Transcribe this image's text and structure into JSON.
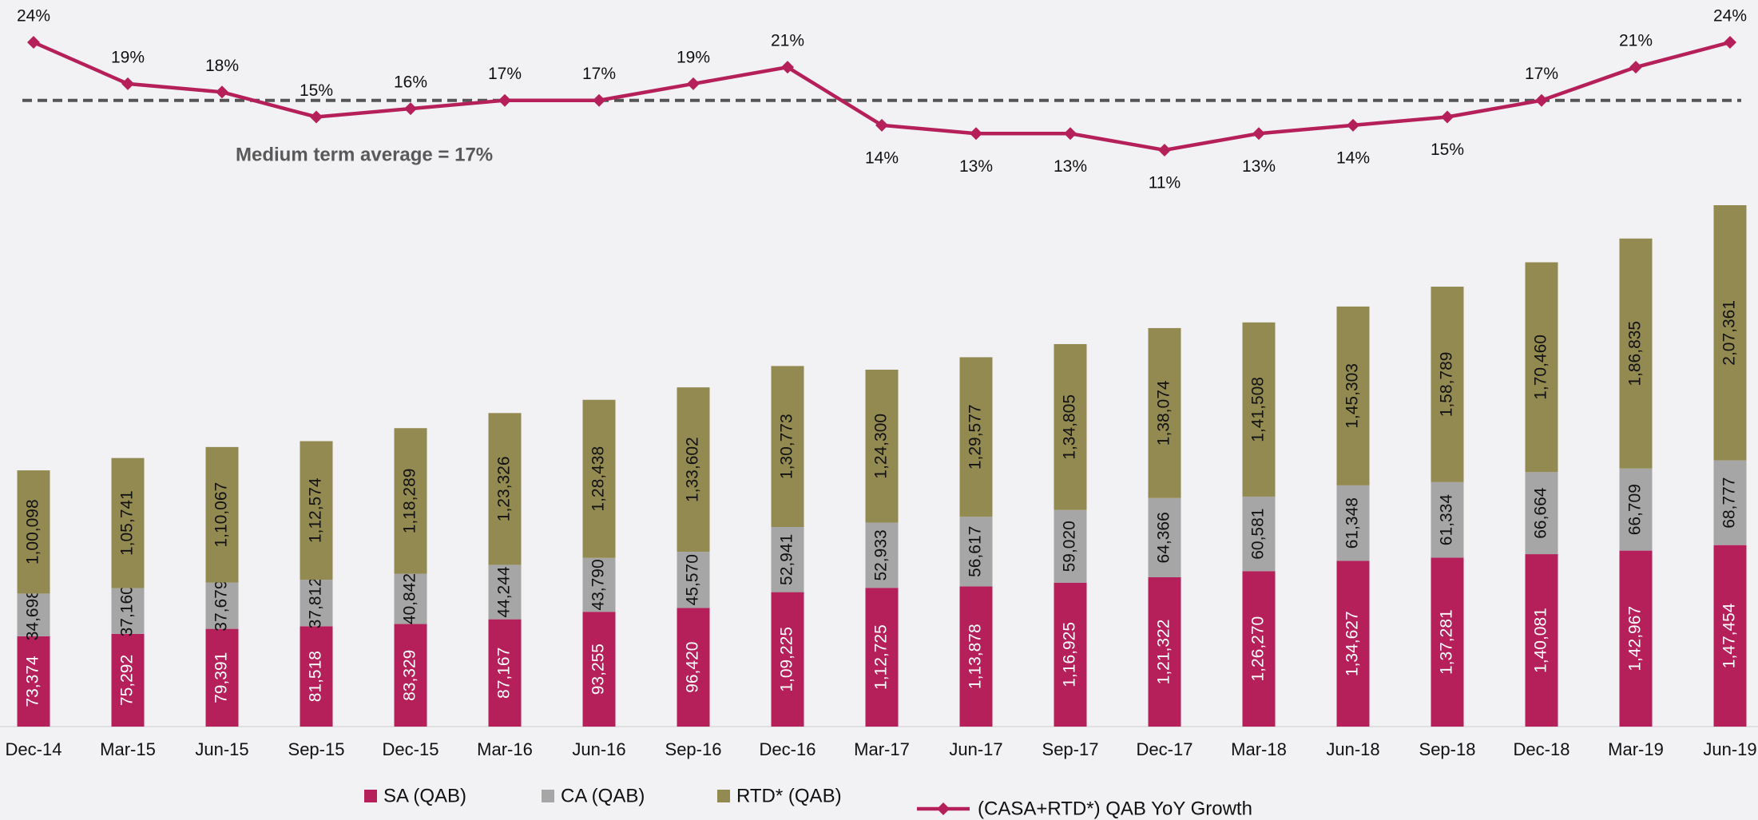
{
  "chart_data": {
    "type": "bar",
    "stacked": true,
    "categories": [
      "Dec-14",
      "Mar-15",
      "Jun-15",
      "Sep-15",
      "Dec-15",
      "Mar-16",
      "Jun-16",
      "Sep-16",
      "Dec-16",
      "Mar-17",
      "Jun-17",
      "Sep-17",
      "Dec-17",
      "Mar-18",
      "Jun-18",
      "Sep-18",
      "Dec-18",
      "Mar-19",
      "Jun-19"
    ],
    "series": [
      {
        "name": "SA (QAB)",
        "color": "#b5205a",
        "values": [
          73374,
          75292,
          79391,
          81518,
          83329,
          87167,
          93255,
          96420,
          109225,
          112725,
          113878,
          116925,
          121322,
          126270,
          134627,
          137281,
          140081,
          142967,
          147454
        ],
        "value_labels": [
          "73,374",
          "75,292",
          "79,391",
          "81,518",
          "83,329",
          "87,167",
          "93,255",
          "96,420",
          "1,09,225",
          "1,12,725",
          "1,13,878",
          "1,16,925",
          "1,21,322",
          "1,26,270",
          "1,34,627",
          "1,37,281",
          "1,40,081",
          "1,42,967",
          "1,47,454"
        ]
      },
      {
        "name": "CA (QAB)",
        "color": "#a6a6a6",
        "values": [
          34698,
          37160,
          37679,
          37812,
          40842,
          44244,
          43790,
          45570,
          52941,
          52933,
          56617,
          59020,
          64366,
          60581,
          61348,
          61334,
          66664,
          66709,
          68777
        ],
        "value_labels": [
          "34,698",
          "37,160",
          "37,679",
          "37,812",
          "40,842",
          "44,244",
          "43,790",
          "45,570",
          "52,941",
          "52,933",
          "56,617",
          "59,020",
          "64,366",
          "60,581",
          "61,348",
          "61,334",
          "66,664",
          "66,709",
          "68,777"
        ]
      },
      {
        "name": "RTD* (QAB)",
        "color": "#938a52",
        "values": [
          100098,
          105741,
          110067,
          112574,
          118289,
          123326,
          128438,
          133602,
          130773,
          124300,
          129577,
          134805,
          138074,
          141508,
          145303,
          158789,
          170460,
          186835,
          207361
        ],
        "value_labels": [
          "1,00,098",
          "1,05,741",
          "1,10,067",
          "1,12,574",
          "1,18,289",
          "1,23,326",
          "1,28,438",
          "1,33,602",
          "1,30,773",
          "1,24,300",
          "1,29,577",
          "1,34,805",
          "1,38,074",
          "1,41,508",
          "1,45,303",
          "1,58,789",
          "1,70,460",
          "1,86,835",
          "2,07,361"
        ]
      },
      {
        "name": "(CASA+RTD*) QAB YoY Growth",
        "type": "line",
        "color": "#b5205a",
        "values": [
          24,
          19,
          18,
          15,
          16,
          17,
          17,
          19,
          21,
          14,
          13,
          13,
          11,
          13,
          14,
          15,
          17,
          21,
          24
        ],
        "value_labels": [
          "24%",
          "19%",
          "18%",
          "15%",
          "16%",
          "17%",
          "17%",
          "19%",
          "21%",
          "14%",
          "13%",
          "13%",
          "11%",
          "13%",
          "14%",
          "15%",
          "17%",
          "21%",
          "24%"
        ]
      }
    ],
    "average_line": {
      "value": 17,
      "label": "Medium term average = 17%"
    }
  }
}
